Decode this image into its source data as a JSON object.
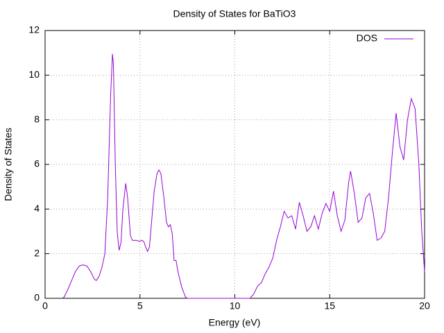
{
  "chart_data": {
    "type": "line",
    "title": "Density of States for BaTiO3",
    "xlabel": "Energy (eV)",
    "ylabel": "Density of States",
    "x": [
      0.9,
      1.0,
      1.2,
      1.4,
      1.6,
      1.8,
      2.0,
      2.2,
      2.4,
      2.6,
      2.7,
      2.85,
      3.0,
      3.15,
      3.3,
      3.45,
      3.55,
      3.6,
      3.7,
      3.8,
      3.9,
      4.0,
      4.1,
      4.25,
      4.35,
      4.5,
      4.6,
      4.8,
      5.0,
      5.1,
      5.2,
      5.3,
      5.4,
      5.5,
      5.6,
      5.75,
      5.9,
      6.0,
      6.1,
      6.25,
      6.4,
      6.5,
      6.6,
      6.7,
      6.8,
      6.9,
      7.0,
      7.2,
      7.4,
      7.5,
      10.8,
      11.0,
      11.2,
      11.4,
      11.6,
      11.8,
      12.0,
      12.2,
      12.4,
      12.6,
      12.8,
      13.0,
      13.2,
      13.4,
      13.6,
      13.8,
      14.0,
      14.2,
      14.4,
      14.6,
      14.8,
      15.0,
      15.2,
      15.4,
      15.6,
      15.8,
      16.0,
      16.1,
      16.3,
      16.5,
      16.7,
      16.9,
      17.1,
      17.3,
      17.5,
      17.7,
      17.9,
      18.1,
      18.3,
      18.5,
      18.7,
      18.9,
      19.1,
      19.3,
      19.5,
      19.7,
      19.85,
      20.0
    ],
    "series": [
      {
        "name": "DOS",
        "color": "#9400d3",
        "values": [
          0,
          0.05,
          0.4,
          0.8,
          1.2,
          1.45,
          1.5,
          1.45,
          1.2,
          0.85,
          0.8,
          1.0,
          1.4,
          2.0,
          4.5,
          9.0,
          10.95,
          10.5,
          6.0,
          3.0,
          2.15,
          2.5,
          4.0,
          5.15,
          4.5,
          2.8,
          2.6,
          2.6,
          2.55,
          2.6,
          2.55,
          2.3,
          2.1,
          2.3,
          3.3,
          4.8,
          5.6,
          5.75,
          5.6,
          4.6,
          3.4,
          3.2,
          3.3,
          2.9,
          1.7,
          1.7,
          1.2,
          0.5,
          0.05,
          0,
          0,
          0.2,
          0.55,
          0.7,
          1.1,
          1.4,
          1.8,
          2.6,
          3.2,
          3.9,
          3.6,
          3.7,
          3.1,
          4.3,
          3.7,
          3.0,
          3.2,
          3.7,
          3.1,
          3.8,
          4.25,
          3.9,
          4.8,
          3.7,
          3.0,
          3.5,
          5.2,
          5.7,
          4.7,
          3.4,
          3.6,
          4.5,
          4.7,
          3.8,
          2.6,
          2.7,
          3.0,
          4.5,
          6.5,
          8.3,
          6.8,
          6.2,
          8.0,
          8.95,
          8.5,
          6.0,
          3.0,
          1.2
        ]
      }
    ],
    "xlim": [
      0,
      20
    ],
    "ylim": [
      0,
      12
    ],
    "xticks": [
      0,
      5,
      10,
      15,
      20
    ],
    "yticks": [
      0,
      2,
      4,
      6,
      8,
      10,
      12
    ],
    "grid": true,
    "legend": "upper right"
  }
}
